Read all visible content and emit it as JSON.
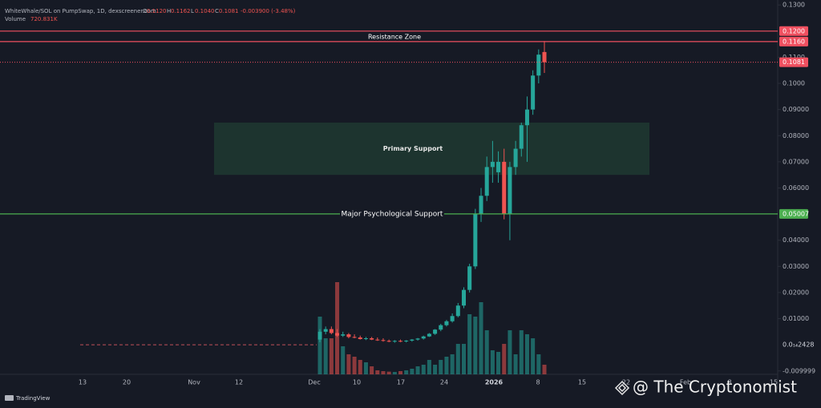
{
  "chart_data": {
    "type": "candlestick",
    "header": {
      "symbol": "WhiteWhale/SOL on PumpSwap, 1D, dexscreener.com",
      "ohlc": [
        {
          "k": "O",
          "v": "0.1120"
        },
        {
          "k": "H",
          "v": "0.1162"
        },
        {
          "k": "L",
          "v": "0.1040"
        },
        {
          "k": "C",
          "v": "0.1081"
        }
      ],
      "change": "-0.003900 (-3.48%)",
      "volume_title": "Volume",
      "volume_value": "720.831K"
    },
    "ylim": [
      -0.0113,
      0.1319
    ],
    "yticks": [
      {
        "value": 0.13,
        "label": "0.1300"
      },
      {
        "value": 0.11,
        "label": "0.1100"
      },
      {
        "value": 0.1,
        "label": "0.1000"
      },
      {
        "value": 0.09,
        "label": "0.09000"
      },
      {
        "value": 0.08,
        "label": "0.08000"
      },
      {
        "value": 0.07,
        "label": "0.07000"
      },
      {
        "value": 0.06,
        "label": "0.06000"
      },
      {
        "value": 0.04,
        "label": "0.04000"
      },
      {
        "value": 0.03,
        "label": "0.03000"
      },
      {
        "value": 0.02,
        "label": "0.02000"
      },
      {
        "value": 0.01,
        "label": "0.01000"
      },
      {
        "value": -0.009999,
        "label": "-0.009999"
      }
    ],
    "xlabels": [
      "13",
      "20",
      "Nov",
      "12",
      "Dec",
      "10",
      "17",
      "24",
      "2026",
      "8",
      "15",
      "22",
      "Feb",
      "8",
      "15"
    ],
    "grid": false,
    "up_color": "#26a69a",
    "down_color": "#ef5350",
    "ohlc": [
      [
        0.002,
        0.006,
        0.001,
        0.005
      ],
      [
        0.005,
        0.007,
        0.004,
        0.006
      ],
      [
        0.006,
        0.007,
        0.004,
        0.0045
      ],
      [
        0.0045,
        0.006,
        0.003,
        0.0035
      ],
      [
        0.0035,
        0.005,
        0.003,
        0.004
      ],
      [
        0.004,
        0.0045,
        0.0025,
        0.003
      ],
      [
        0.003,
        0.004,
        0.0025,
        0.0028
      ],
      [
        0.0028,
        0.0035,
        0.002,
        0.0022
      ],
      [
        0.0022,
        0.003,
        0.0018,
        0.0025
      ],
      [
        0.0025,
        0.003,
        0.0018,
        0.002
      ],
      [
        0.002,
        0.0028,
        0.0015,
        0.0018
      ],
      [
        0.0018,
        0.0025,
        0.0012,
        0.0015
      ],
      [
        0.0015,
        0.002,
        0.001,
        0.0012
      ],
      [
        0.0012,
        0.0018,
        0.0008,
        0.0015
      ],
      [
        0.0015,
        0.002,
        0.001,
        0.0013
      ],
      [
        0.0013,
        0.0018,
        0.0009,
        0.0016
      ],
      [
        0.0016,
        0.0022,
        0.0012,
        0.002
      ],
      [
        0.002,
        0.0026,
        0.0016,
        0.0024
      ],
      [
        0.0024,
        0.0035,
        0.002,
        0.0032
      ],
      [
        0.0032,
        0.0045,
        0.003,
        0.0042
      ],
      [
        0.0042,
        0.006,
        0.0038,
        0.0058
      ],
      [
        0.0058,
        0.008,
        0.0052,
        0.0075
      ],
      [
        0.0075,
        0.0095,
        0.007,
        0.009
      ],
      [
        0.009,
        0.012,
        0.0085,
        0.011
      ],
      [
        0.011,
        0.016,
        0.0105,
        0.015
      ],
      [
        0.015,
        0.022,
        0.014,
        0.021
      ],
      [
        0.021,
        0.031,
        0.02,
        0.03
      ],
      [
        0.03,
        0.052,
        0.029,
        0.05
      ],
      [
        0.05,
        0.06,
        0.047,
        0.057
      ],
      [
        0.057,
        0.072,
        0.055,
        0.068
      ],
      [
        0.068,
        0.078,
        0.062,
        0.07
      ],
      [
        0.066,
        0.074,
        0.062,
        0.07
      ],
      [
        0.07,
        0.075,
        0.048,
        0.05
      ],
      [
        0.05,
        0.07,
        0.04,
        0.068
      ],
      [
        0.068,
        0.078,
        0.065,
        0.075
      ],
      [
        0.075,
        0.085,
        0.072,
        0.084
      ],
      [
        0.084,
        0.095,
        0.07,
        0.09
      ],
      [
        0.09,
        0.105,
        0.088,
        0.103
      ],
      [
        0.103,
        0.113,
        0.1,
        0.111
      ],
      [
        0.112,
        0.1162,
        0.104,
        0.1081
      ]
    ],
    "volume": [
      4320000,
      2700000,
      2700000,
      6900000,
      2100000,
      1500000,
      1320000,
      1080000,
      900000,
      600000,
      300000,
      240000,
      200000,
      180000,
      240000,
      300000,
      420000,
      600000,
      720000,
      1080000,
      720000,
      1080000,
      1320000,
      1500000,
      2280000,
      2280000,
      4500000,
      4320000,
      5400000,
      3300000,
      1800000,
      1680000,
      2280000,
      3300000,
      1500000,
      3300000,
      3000000,
      2700000,
      1500000,
      720831
    ],
    "price_lines": [
      {
        "value": 0.12,
        "label": "0.1200",
        "color": "#f05060",
        "style": "solid"
      },
      {
        "value": 0.116,
        "label": "0.1160",
        "color": "#f05060",
        "style": "solid"
      },
      {
        "value": 0.1081,
        "label": "0.1081",
        "color": "#f05060",
        "style": "dotted"
      },
      {
        "value": 0.05007,
        "label": "0.05007",
        "color": "#4caf50",
        "style": "solid"
      },
      {
        "value": 2.428e-15,
        "label": "0.0₁₄2428",
        "color": "#c0505a",
        "style": "dashed"
      }
    ],
    "annotations": {
      "resistance": "Resistance Zone",
      "support_box": {
        "label": "Primary Support",
        "range": [
          0.065,
          0.085
        ]
      },
      "psychological": "Major Psychological Support"
    },
    "logo": "TradingView",
    "watermark": "@ The Cryptonomist"
  }
}
